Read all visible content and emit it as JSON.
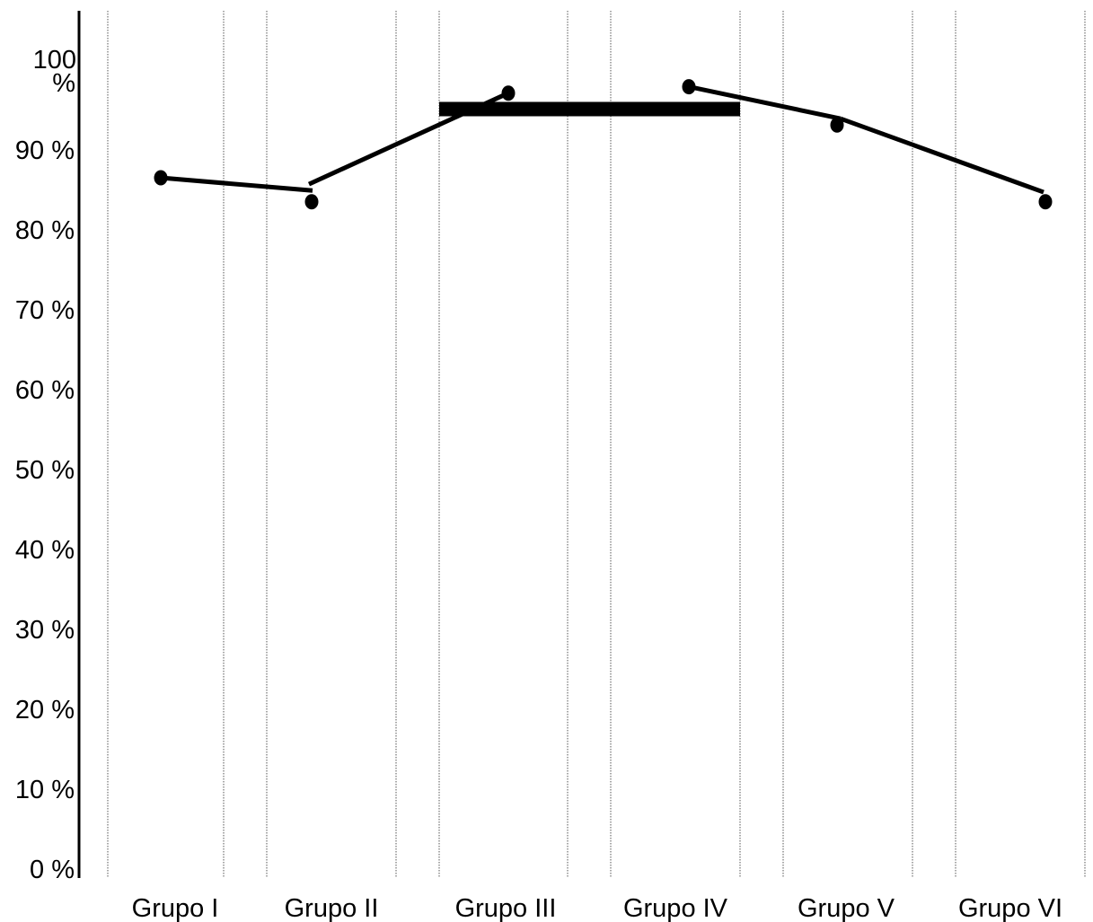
{
  "chart_data": {
    "type": "line",
    "title": "",
    "xlabel": "",
    "ylabel": "",
    "ylim": [
      0,
      100
    ],
    "grid": "vertical dotted lines at group boundaries",
    "yticks": [
      "0 %",
      "10 %",
      "20 %",
      "30 %",
      "40 %",
      "50 %",
      "60 %",
      "70 %",
      "80 %",
      "90 %",
      "100 %"
    ],
    "categories": [
      "Grupo I",
      "Grupo II",
      "Grupo III",
      "Grupo IV",
      "Grupo V",
      "Grupo VI"
    ],
    "points": [
      {
        "x": "Grupo I",
        "y": 86.4
      },
      {
        "x": "Grupo II",
        "y": 83.4
      },
      {
        "x": "Grupo III",
        "y": 97.0
      },
      {
        "x": "Grupo IV",
        "y": 97.8
      },
      {
        "x": "Grupo V",
        "y": 93.0
      },
      {
        "x": "Grupo VI",
        "y": 83.4
      }
    ],
    "trend_lines": [
      {
        "from": {
          "x": "Grupo I",
          "y": 86.4
        },
        "to": {
          "x": "Grupo II",
          "y": 84.8
        }
      },
      {
        "from": {
          "x": "Grupo II",
          "y": 85.6
        },
        "to": {
          "x": "Grupo III",
          "y": 97.0
        }
      },
      {
        "from": {
          "x": "Grupo IV",
          "y": 97.8
        },
        "to": {
          "x": "Grupo V",
          "y": 93.8
        }
      },
      {
        "from": {
          "x": "Grupo V",
          "y": 93.8
        },
        "to": {
          "x": "Grupo VI",
          "y": 84.6
        }
      }
    ],
    "reference_band": {
      "from": "Grupo III",
      "to": "Grupo IV",
      "y": 95.0
    },
    "colors": {
      "line": "#000000",
      "grid": "#555555",
      "background": "#ffffff"
    }
  }
}
